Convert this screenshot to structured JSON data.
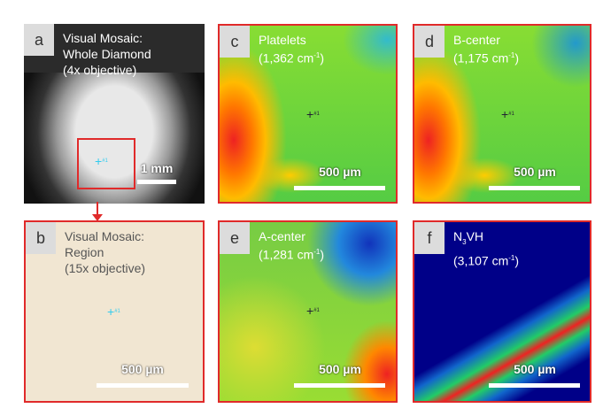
{
  "panels": [
    {
      "letter": "a",
      "title": "Visual Mosaic:",
      "subtitle": "Whole Diamond",
      "note": "(4x objective)",
      "scale": "1 mm",
      "marker": "#1"
    },
    {
      "letter": "b",
      "title": "Visual Mosaic:",
      "subtitle": "Region",
      "note": "(15x objective)",
      "scale": "500 µm",
      "marker": "#1"
    },
    {
      "letter": "c",
      "title": "Platelets",
      "wavenumber": "(1,362 cm",
      "superscript": "-1",
      "close": ")",
      "scale": "500 µm",
      "marker": "#1"
    },
    {
      "letter": "d",
      "title": "B-center",
      "wavenumber": "(1,175 cm",
      "superscript": "-1",
      "close": ")",
      "scale": "500 µm",
      "marker": "#1"
    },
    {
      "letter": "e",
      "title": "A-center",
      "wavenumber": "(1,281 cm",
      "superscript": "-1",
      "close": ")",
      "scale": "500 µm",
      "marker": "#1"
    },
    {
      "letter": "f",
      "title": "N",
      "subscript": "3",
      "title_rest": "VH",
      "wavenumber": "(3,107 cm",
      "superscript": "-1",
      "close": ")",
      "scale": "500 µm"
    }
  ]
}
